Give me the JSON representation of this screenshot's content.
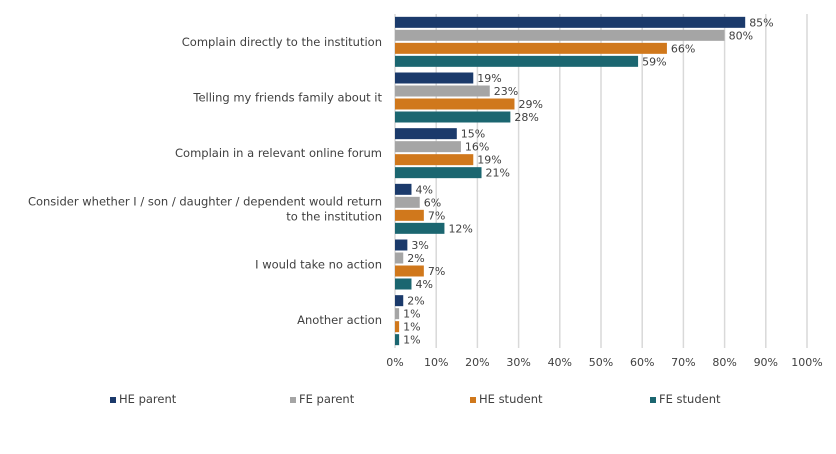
{
  "chart_data": {
    "type": "bar",
    "orientation": "horizontal",
    "categories": [
      "Complain directly to the institution",
      "Telling my friends family about it",
      "Complain in a relevant online forum",
      "Consider whether I / son / daughter / dependent would return to the institution",
      "I would take no action",
      "Another action"
    ],
    "category_lines": [
      [
        "Complain directly to the institution"
      ],
      [
        "Telling my friends family about it"
      ],
      [
        "Complain in a relevant online forum"
      ],
      [
        "Consider whether I / son / daughter / dependent would return",
        "to the institution"
      ],
      [
        "I would take no action"
      ],
      [
        "Another action"
      ]
    ],
    "series": [
      {
        "name": "HE parent",
        "color": "#1b3a6b",
        "values": [
          85,
          19,
          15,
          4,
          3,
          2
        ]
      },
      {
        "name": "FE parent",
        "color": "#a5a5a5",
        "values": [
          80,
          23,
          16,
          6,
          2,
          1
        ]
      },
      {
        "name": "HE student",
        "color": "#d0781c",
        "values": [
          66,
          29,
          19,
          7,
          7,
          1
        ]
      },
      {
        "name": "FE student",
        "color": "#1b6670",
        "values": [
          59,
          28,
          21,
          12,
          4,
          1
        ]
      }
    ],
    "xlim": [
      0,
      100
    ],
    "xticks": [
      "0%",
      "10%",
      "20%",
      "30%",
      "40%",
      "50%",
      "60%",
      "70%",
      "80%",
      "90%",
      "100%"
    ],
    "value_suffix": "%",
    "grid": true,
    "legend_position": "bottom"
  }
}
